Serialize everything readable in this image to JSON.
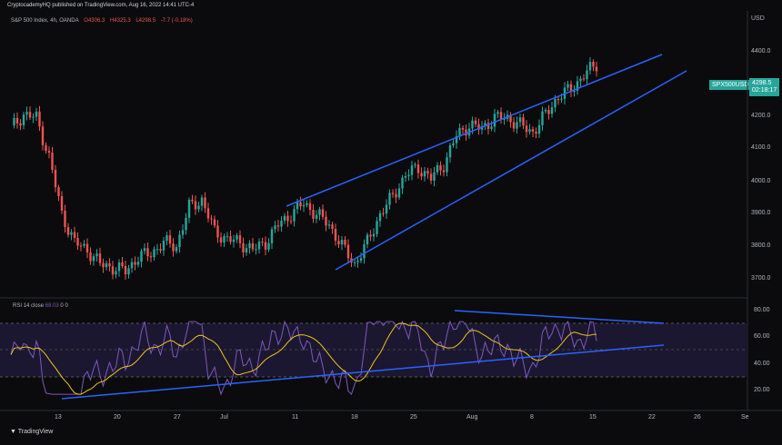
{
  "header": {
    "publish_line": "CryptocademyHQ published on TradingView.com, Aug 16, 2022 14:41 UTC-4",
    "symbol_line": "S&P 500 Index, 4h, OANDA",
    "open": "O4306.3",
    "high": "H4325.3",
    "low": "L4298.5",
    "low_value": "4298.5",
    "change": "-7.7 (-0.18%)"
  },
  "price_axis": {
    "currency": "USD",
    "labels": [
      "4400.0",
      "4300.0",
      "4200.0",
      "4100.0",
      "4000.0",
      "3900.0",
      "3800.0",
      "3700.0"
    ]
  },
  "symbol_tag": "SPX500USD",
  "last_price": "4298.5",
  "countdown": "02:18:17",
  "rsi": {
    "label": "RSI",
    "period": "14",
    "source": "close",
    "value": "68.03",
    "extra": "0",
    "extra2": "0",
    "axis_labels": [
      "80.00",
      "60.00",
      "40.00",
      "20.00"
    ]
  },
  "time_axis": [
    "13",
    "20",
    "27",
    "Jul",
    "11",
    "18",
    "25",
    "Aug",
    "8",
    "15",
    "22",
    "26",
    "Se"
  ],
  "brand": "TradingView",
  "colors": {
    "up": "#26a69a",
    "down": "#ef5350",
    "trendline": "#2962ff",
    "rsi_line": "#7e57c2",
    "rsi_ma": "#f0c419"
  },
  "chart_data": {
    "type": "candlestick",
    "ylim": [
      3650,
      4450
    ],
    "rsi_ylim": [
      10,
      90
    ],
    "anchors": [
      [
        0,
        4120
      ],
      [
        4,
        4160
      ],
      [
        8,
        4150
      ],
      [
        12,
        4040
      ],
      [
        16,
        3880
      ],
      [
        20,
        3800
      ],
      [
        24,
        3780
      ],
      [
        28,
        3740
      ],
      [
        32,
        3730
      ],
      [
        36,
        3720
      ],
      [
        40,
        3760
      ],
      [
        44,
        3770
      ],
      [
        48,
        3800
      ],
      [
        52,
        3790
      ],
      [
        56,
        3900
      ],
      [
        60,
        3920
      ],
      [
        64,
        3830
      ],
      [
        68,
        3810
      ],
      [
        72,
        3800
      ],
      [
        76,
        3780
      ],
      [
        80,
        3800
      ],
      [
        84,
        3850
      ],
      [
        88,
        3880
      ],
      [
        92,
        3910
      ],
      [
        96,
        3880
      ],
      [
        100,
        3850
      ],
      [
        104,
        3790
      ],
      [
        108,
        3740
      ],
      [
        112,
        3800
      ],
      [
        116,
        3880
      ],
      [
        120,
        3930
      ],
      [
        124,
        3990
      ],
      [
        128,
        4010
      ],
      [
        132,
        3980
      ],
      [
        136,
        4020
      ],
      [
        140,
        4100
      ],
      [
        144,
        4130
      ],
      [
        148,
        4120
      ],
      [
        152,
        4150
      ],
      [
        156,
        4150
      ],
      [
        160,
        4130
      ],
      [
        164,
        4110
      ],
      [
        168,
        4160
      ],
      [
        172,
        4210
      ],
      [
        176,
        4230
      ],
      [
        180,
        4270
      ],
      [
        184,
        4300
      ]
    ]
  }
}
